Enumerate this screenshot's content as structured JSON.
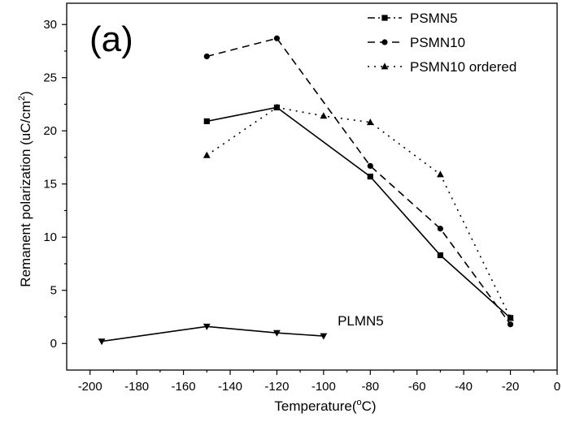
{
  "chart_data": {
    "type": "line",
    "panel_label": "(a)",
    "xlabel_main": "Temperature(",
    "xlabel_sup": "o",
    "xlabel_tail": "C)",
    "ylabel_main": "Remanent polarization (uC/cm",
    "ylabel_sup": "2",
    "ylabel_tail": ")",
    "xlim": [
      -210,
      0
    ],
    "ylim": [
      -2.5,
      32
    ],
    "x_ticks": [
      -200,
      -180,
      -160,
      -140,
      -120,
      -100,
      -80,
      -60,
      -40,
      -20,
      0
    ],
    "y_ticks": [
      0,
      5,
      10,
      15,
      20,
      25,
      30
    ],
    "x_tick_labels": [
      "-200",
      "-180",
      "-160",
      "-140",
      "-120",
      "-100",
      "-80",
      "-60",
      "-40",
      "-20",
      "0"
    ],
    "y_tick_labels": [
      "0",
      "5",
      "10",
      "15",
      "20",
      "25",
      "30"
    ],
    "legend_position": "top-right",
    "grid": false,
    "series": [
      {
        "name": "PSMN5",
        "marker": "square",
        "dash": "solid",
        "legend_dash": "dashdot",
        "in_legend": true,
        "x": [
          -150,
          -120,
          -80,
          -50,
          -20
        ],
        "y": [
          20.9,
          22.2,
          15.7,
          8.3,
          2.4
        ]
      },
      {
        "name": "PSMN10",
        "marker": "circle",
        "dash": "dashed",
        "legend_dash": "dashed",
        "in_legend": true,
        "x": [
          -150,
          -120,
          -80,
          -50,
          -20
        ],
        "y": [
          27.0,
          28.7,
          16.7,
          10.8,
          1.8
        ]
      },
      {
        "name": "PSMN10 ordered",
        "marker": "triangle-up",
        "dash": "dotted",
        "legend_dash": "dotted",
        "in_legend": true,
        "x": [
          -150,
          -120,
          -100,
          -80,
          -50,
          -20
        ],
        "y": [
          17.7,
          22.2,
          21.4,
          20.8,
          15.9,
          2.4
        ]
      },
      {
        "name": "PLMN5",
        "marker": "triangle-down",
        "dash": "solid",
        "in_legend": false,
        "x": [
          -195,
          -150,
          -120,
          -100
        ],
        "y": [
          0.2,
          1.6,
          1.0,
          0.7
        ]
      }
    ],
    "annotations": [
      {
        "text": "PLMN5",
        "x": -94,
        "y": 1.7
      }
    ]
  }
}
